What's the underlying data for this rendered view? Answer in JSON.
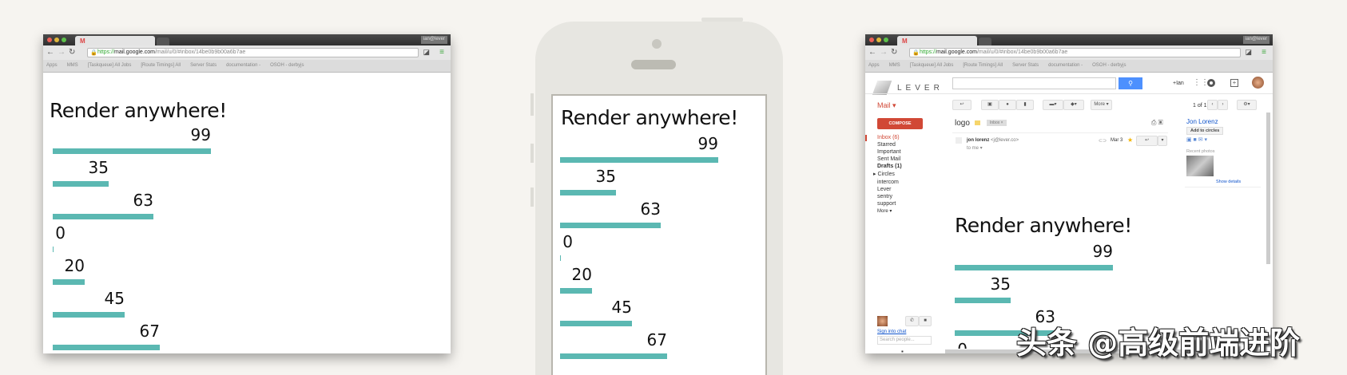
{
  "heading": "Render anywhere!",
  "chart_data": {
    "type": "bar",
    "orientation": "horizontal",
    "values": [
      99,
      35,
      63,
      0,
      20,
      45,
      67
    ],
    "bar_color": "#5bb8b2",
    "data_labels": [
      "99",
      "35",
      "63",
      "0",
      "20",
      "45",
      "67"
    ]
  },
  "browser": {
    "profile": "ian@lever",
    "url_scheme": "https://",
    "url_host": "mail.google.com",
    "url_path": "/mail/u/0/#inbox/14be0b9b00a6b7ae",
    "bookmarks": [
      "Apps",
      "MMS",
      "[Taskqueue] All Jobs",
      "[Route Timings] All",
      "Server Stats",
      "documentation -",
      "OSOH - derbyjs"
    ]
  },
  "gmail": {
    "logo": "LEVER",
    "user": "+Ian",
    "mail_label": "Mail ▾",
    "more": "More ▾",
    "pager": "1 of 1",
    "compose": "COMPOSE",
    "nav": [
      "Inbox (6)",
      "Starred",
      "Important",
      "Sent Mail",
      "Drafts (1)",
      "▸ Circles",
      "intercom",
      "Lever",
      "sentry",
      "support",
      "More ▾"
    ],
    "subject": "logo",
    "tag": "Inbox ×",
    "sender": "jon lorenz",
    "sender_email": "<j@lever.co>",
    "to": "to me ▾",
    "date": "Mar 3",
    "contact_name": "Jon Lorenz",
    "add_circles": "Add to circles",
    "recent_photos": "Recent photos",
    "show_details": "Show details",
    "sign_in_chat": "Sign into chat",
    "search_people": "Search people...",
    "accent": "#d14836",
    "search_blue": "#4d90fe"
  },
  "watermark": "头条 @高级前端进阶"
}
